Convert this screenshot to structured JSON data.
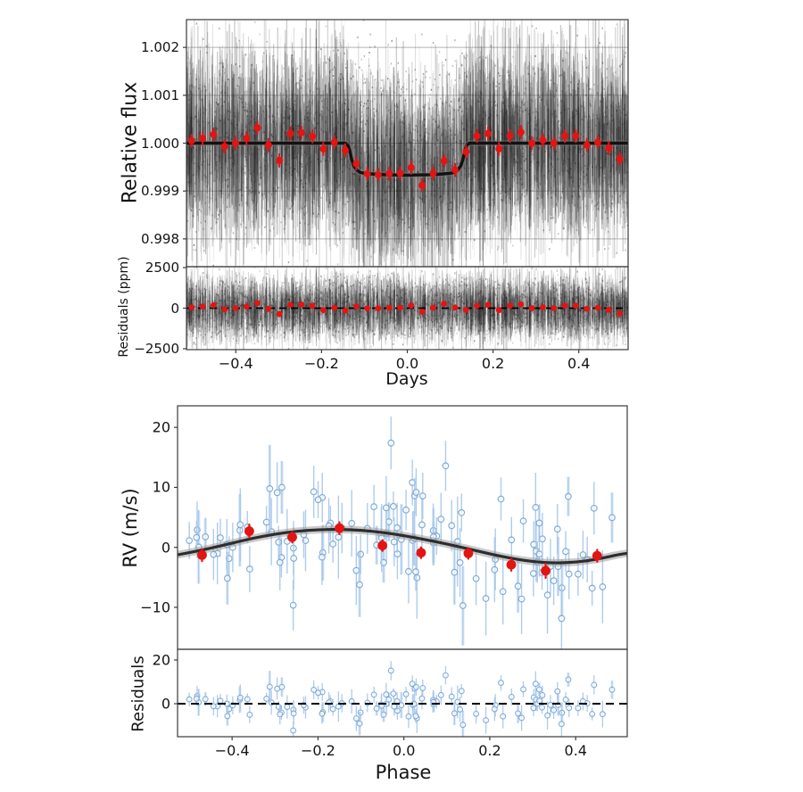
{
  "page": {
    "background": "#ffffff"
  },
  "chart_data": [
    {
      "id": "transit-lightcurve",
      "type": "scatter",
      "xlabel": "Days",
      "ylabel": "Relative flux",
      "resid_ylabel": "Residuals (ppm)",
      "xlim": [
        -0.515,
        0.515
      ],
      "ylim": [
        0.99742,
        1.00258
      ],
      "resid_ylim": [
        -2556,
        2556
      ],
      "grid": true,
      "legend": "none",
      "xticks": {
        "values": [
          -0.4,
          -0.2,
          0.0,
          0.2,
          0.4
        ],
        "labels": [
          "−0.4",
          "−0.2",
          "0.0",
          "0.2",
          "0.4"
        ]
      },
      "yticks": {
        "values": [
          0.998,
          0.999,
          1.0,
          1.001,
          1.002
        ],
        "labels": [
          "0.998",
          "0.999",
          "1.000",
          "1.001",
          "1.002"
        ]
      },
      "resid_yticks": {
        "values": [
          2500,
          0,
          -2500
        ],
        "labels": [
          "2500",
          "0",
          "−2500"
        ]
      },
      "model_points": [
        [
          -0.52,
          1.0
        ],
        [
          -0.145,
          1.0
        ],
        [
          -0.138,
          0.99995
        ],
        [
          -0.134,
          0.99984
        ],
        [
          -0.13,
          0.99967
        ],
        [
          -0.125,
          0.99953
        ],
        [
          -0.118,
          0.99944
        ],
        [
          -0.11,
          0.99939
        ],
        [
          -0.1,
          0.99937
        ],
        [
          -0.08,
          0.999355
        ],
        [
          -0.05,
          0.99934
        ],
        [
          -0.02,
          0.999335
        ],
        [
          0.0,
          0.99933
        ],
        [
          0.02,
          0.999335
        ],
        [
          0.05,
          0.99934
        ],
        [
          0.08,
          0.999355
        ],
        [
          0.1,
          0.99937
        ],
        [
          0.11,
          0.99939
        ],
        [
          0.118,
          0.99944
        ],
        [
          0.125,
          0.99953
        ],
        [
          0.13,
          0.99967
        ],
        [
          0.134,
          0.99984
        ],
        [
          0.138,
          0.99995
        ],
        [
          0.145,
          1.0
        ],
        [
          0.52,
          1.0
        ]
      ],
      "binned": {
        "days": [
          -0.503,
          -0.4774,
          -0.4518,
          -0.4262,
          -0.4006,
          -0.375,
          -0.3494,
          -0.3238,
          -0.2982,
          -0.2726,
          -0.247,
          -0.2214,
          -0.1958,
          -0.1702,
          -0.1446,
          -0.119,
          -0.0934,
          -0.0678,
          -0.0422,
          -0.0166,
          0.009,
          0.0346,
          0.0602,
          0.0858,
          0.1114,
          0.137,
          0.1626,
          0.1882,
          0.2138,
          0.2394,
          0.265,
          0.2906,
          0.3162,
          0.3418,
          0.3674,
          0.393,
          0.4186,
          0.4442,
          0.4698,
          0.4954
        ],
        "flux": [
          1.00005,
          1.0001,
          1.00018,
          0.99993,
          1.0,
          1.0001,
          1.00032,
          0.99996,
          0.99964,
          1.0002,
          1.00022,
          1.00014,
          0.99988,
          1.00002,
          0.99985,
          0.99957,
          0.99936,
          0.99934,
          0.99936,
          0.99937,
          0.99949,
          0.99912,
          0.99937,
          0.99963,
          0.99944,
          0.99982,
          1.00015,
          1.0002,
          0.99988,
          1.00015,
          1.00023,
          1.0,
          1.00006,
          1.0,
          1.00015,
          1.00015,
          0.99996,
          1.00002,
          0.9999,
          0.99967
        ],
        "err": 0.00013
      },
      "noise_cloud": {
        "count": 3400,
        "seed": 7,
        "center_sigma_ppm": 520,
        "halflen_base_ppm": 250,
        "halflen_spread_ppm": 1200,
        "speck_count": 1500,
        "speck_sigma_ppm": 1050
      },
      "colors": {
        "binned": "#e31412",
        "model": "#121212",
        "model_halo": "#787878",
        "noise": "#1c1c1c",
        "grid": "#5a5a5a",
        "zero_dash": "#000000",
        "axis": "#3a3a3a"
      }
    },
    {
      "id": "rv-phase-curve",
      "type": "scatter",
      "xlabel": "Phase",
      "ylabel": "RV (m/s)",
      "resid_ylabel": "Residuals",
      "xlim": [
        -0.527,
        0.52
      ],
      "ylim": [
        -17.0,
        23.6
      ],
      "resid_ylim": [
        -15.1,
        24.9
      ],
      "grid": false,
      "legend": "none",
      "xticks": {
        "values": [
          -0.4,
          -0.2,
          0.0,
          0.2,
          0.4
        ],
        "labels": [
          "−0.4",
          "−0.2",
          "0.0",
          "0.2",
          "0.4"
        ]
      },
      "yticks": {
        "values": [
          20,
          10,
          0,
          -10
        ],
        "labels": [
          "20",
          "10",
          "0",
          "−10"
        ]
      },
      "resid_yticks": {
        "values": [
          20,
          0
        ],
        "labels": [
          "20",
          "0"
        ]
      },
      "model_points": [
        [
          -0.527,
          -1.25
        ],
        [
          -0.5,
          -0.9
        ],
        [
          -0.45,
          -0.15
        ],
        [
          -0.4,
          0.7
        ],
        [
          -0.35,
          1.55
        ],
        [
          -0.3,
          2.2
        ],
        [
          -0.25,
          2.7
        ],
        [
          -0.2,
          2.95
        ],
        [
          -0.15,
          3.0
        ],
        [
          -0.1,
          2.85
        ],
        [
          -0.05,
          2.5
        ],
        [
          0.0,
          1.95
        ],
        [
          0.05,
          1.3
        ],
        [
          0.1,
          0.55
        ],
        [
          0.15,
          -0.25
        ],
        [
          0.2,
          -1.1
        ],
        [
          0.25,
          -1.85
        ],
        [
          0.3,
          -2.4
        ],
        [
          0.35,
          -2.62
        ],
        [
          0.4,
          -2.5
        ],
        [
          0.45,
          -2.0
        ],
        [
          0.5,
          -1.2
        ],
        [
          0.52,
          -1.0
        ]
      ],
      "binned": {
        "phase": [
          -0.47,
          -0.36,
          -0.26,
          -0.15,
          -0.05,
          0.04,
          0.15,
          0.25,
          0.33,
          0.45
        ],
        "rv": [
          -1.3,
          2.7,
          1.7,
          3.2,
          0.3,
          -0.9,
          -1.0,
          -2.9,
          -3.9,
          -1.4
        ],
        "err": [
          1.0,
          1.1,
          0.9,
          1.0,
          0.9,
          0.9,
          0.9,
          1.0,
          1.2,
          1.0
        ]
      },
      "scatter": {
        "count": 118,
        "seed": 20,
        "jitter_sigma": 4.4,
        "err_base": 2.2,
        "err_spread": 3.4,
        "outlier": {
          "phase": -0.03,
          "rv": 17.4,
          "err": 4.4
        }
      },
      "colors": {
        "binned": "#e31412",
        "model": "#2d2d2d",
        "model_band": "#969696",
        "scatter_edge": "#6f9fd0",
        "scatter_err": "#a5c6ea",
        "zero_dash": "#000000",
        "axis": "#3a3a3a"
      }
    }
  ]
}
